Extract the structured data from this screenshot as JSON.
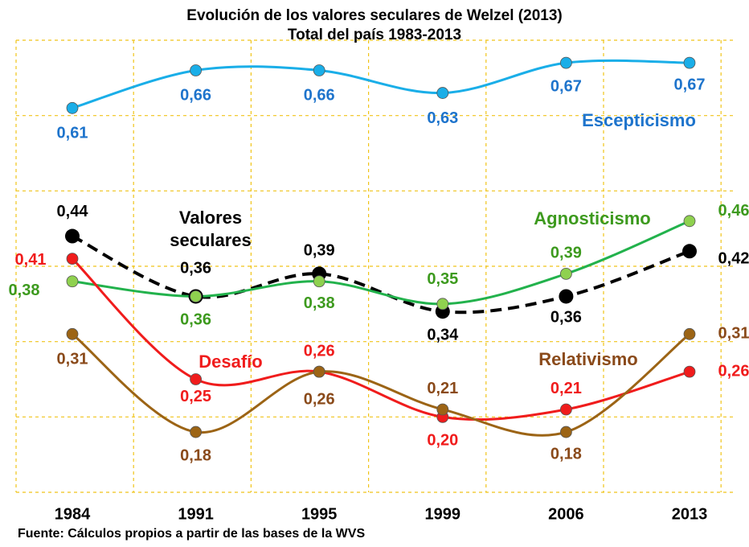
{
  "chart_data": {
    "type": "line",
    "title": "Evolución de los valores seculares de Welzel (2013)",
    "subtitle": "Total del país 1983-2013",
    "source": "Fuente: Cálculos propios a partir de las bases de la WVS",
    "categories": [
      "1984",
      "1991",
      "1995",
      "1999",
      "2006",
      "2013"
    ],
    "ylim": [
      0.1,
      0.7
    ],
    "yticks": [
      0.1,
      0.2,
      0.3,
      0.4,
      0.5,
      0.6,
      0.7
    ],
    "grid": true,
    "series": [
      {
        "name": "Escepticismo",
        "color": "#1aaee8",
        "label_color": "#1e74cc",
        "values": [
          0.61,
          0.66,
          0.66,
          0.63,
          0.67,
          0.67
        ],
        "value_labels": [
          "0,61",
          "0,66",
          "0,66",
          "0,63",
          "0,67",
          "0,67"
        ]
      },
      {
        "name": "Valores seculares",
        "color": "#000000",
        "label_color": "#000000",
        "dashed": true,
        "values": [
          0.44,
          0.36,
          0.39,
          0.34,
          0.36,
          0.42
        ],
        "value_labels": [
          "0,44",
          "0,36",
          "0,39",
          "0,34",
          "0,36",
          "0,42"
        ]
      },
      {
        "name": "Agnosticismo",
        "color": "#22b24c",
        "label_color": "#3d9a1e",
        "marker_color": "#8fd14f",
        "values": [
          0.38,
          0.36,
          0.38,
          0.35,
          0.39,
          0.46
        ],
        "value_labels": [
          "0,38",
          "0,36",
          "0,38",
          "0,35",
          "0,39",
          "0,46"
        ]
      },
      {
        "name": "Desafío",
        "color": "#f01c1c",
        "label_color": "#f01c1c",
        "values": [
          0.41,
          0.25,
          0.26,
          0.2,
          0.21,
          0.26
        ],
        "value_labels": [
          "0,41",
          "0,25",
          "0,26",
          "0,20",
          "0,21",
          "0,26"
        ]
      },
      {
        "name": "Relativismo",
        "color": "#9c6415",
        "label_color": "#8a4a1a",
        "values": [
          0.31,
          0.18,
          0.26,
          0.21,
          0.18,
          0.31
        ],
        "value_labels": [
          "0,31",
          "0,18",
          "0,26",
          "0,21",
          "0,18",
          "0,31"
        ]
      }
    ]
  }
}
